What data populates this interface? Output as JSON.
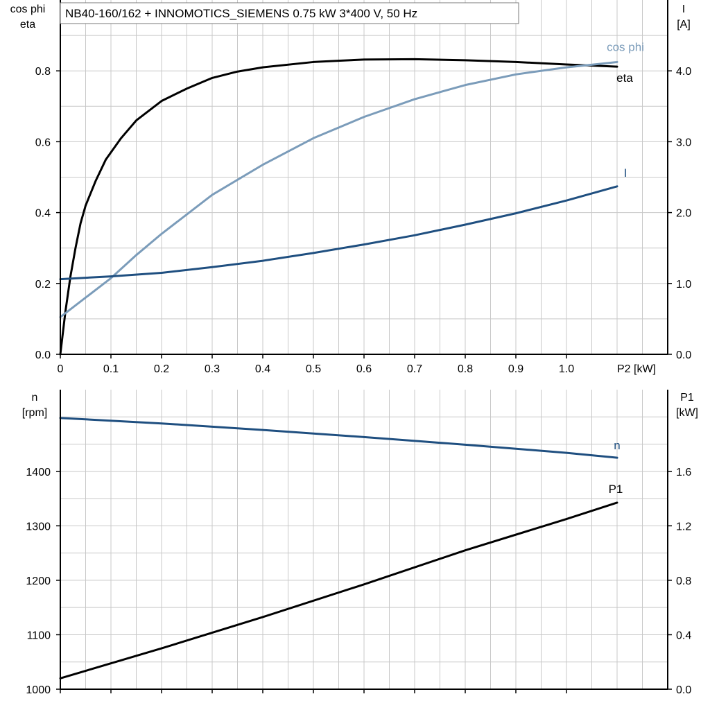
{
  "colors": {
    "eta": "#000000",
    "cos_phi": "#7b9cba",
    "current": "#1f4f80",
    "speed": "#1f4f80",
    "p1": "#000000",
    "grid": "#c8c8c8",
    "frame": "#000000"
  },
  "chart_data": [
    {
      "type": "line",
      "title": "NB40-160/162 + INNOMOTICS_SIEMENS   0.75 kW   3*400 V, 50 Hz",
      "xlabel": "P2 [kW]",
      "ylabel_left": [
        "cos phi",
        "eta"
      ],
      "ylabel_right": [
        "I",
        "[A]"
      ],
      "xlim": [
        0,
        1.2
      ],
      "ylim_left": [
        0,
        1.0
      ],
      "ylim_right": [
        0,
        5.0
      ],
      "x_ticks": [
        0,
        0.1,
        0.2,
        0.3,
        0.4,
        0.5,
        0.6,
        0.7,
        0.8,
        0.9,
        1.0
      ],
      "x_tick_labels": [
        "0",
        "0.1",
        "0.2",
        "0.3",
        "0.4",
        "0.5",
        "0.6",
        "0.7",
        "0.8",
        "0.9",
        "1.0"
      ],
      "y_left_ticks": [
        0,
        0.2,
        0.4,
        0.6,
        0.8
      ],
      "y_left_tick_labels": [
        "0.0",
        "0.2",
        "0.4",
        "0.6",
        "0.8"
      ],
      "y_right_ticks": [
        0,
        1,
        2,
        3,
        4
      ],
      "y_right_tick_labels": [
        "0.0",
        "1.0",
        "2.0",
        "3.0",
        "4.0"
      ],
      "grid": true,
      "series": [
        {
          "name": "eta",
          "axis": "left",
          "color": "#000000",
          "x": [
            0,
            0.01,
            0.02,
            0.03,
            0.04,
            0.05,
            0.07,
            0.09,
            0.12,
            0.15,
            0.2,
            0.25,
            0.3,
            0.35,
            0.4,
            0.5,
            0.6,
            0.7,
            0.8,
            0.9,
            1.0,
            1.1
          ],
          "y": [
            0,
            0.12,
            0.22,
            0.3,
            0.37,
            0.42,
            0.49,
            0.55,
            0.61,
            0.66,
            0.715,
            0.75,
            0.78,
            0.798,
            0.81,
            0.825,
            0.832,
            0.833,
            0.83,
            0.825,
            0.818,
            0.812
          ]
        },
        {
          "name": "cos phi",
          "axis": "left",
          "color": "#7b9cba",
          "x": [
            0,
            0.05,
            0.1,
            0.15,
            0.2,
            0.3,
            0.4,
            0.5,
            0.6,
            0.7,
            0.8,
            0.9,
            1.0,
            1.1
          ],
          "y": [
            0.105,
            0.16,
            0.215,
            0.28,
            0.34,
            0.45,
            0.535,
            0.61,
            0.67,
            0.72,
            0.76,
            0.79,
            0.81,
            0.825
          ]
        },
        {
          "name": "I",
          "axis": "right",
          "color": "#1f4f80",
          "x": [
            0,
            0.1,
            0.2,
            0.3,
            0.4,
            0.5,
            0.6,
            0.7,
            0.8,
            0.9,
            1.0,
            1.1
          ],
          "y": [
            1.06,
            1.1,
            1.15,
            1.23,
            1.32,
            1.43,
            1.55,
            1.68,
            1.83,
            1.99,
            2.17,
            2.37
          ]
        }
      ]
    },
    {
      "type": "line",
      "ylabel_left": [
        "n",
        "[rpm]"
      ],
      "ylabel_right": [
        "P1",
        "[kW]"
      ],
      "xlim": [
        0,
        1.2
      ],
      "ylim_left": [
        1000,
        1550
      ],
      "ylim_right": [
        0.0,
        2.2
      ],
      "x_ticks": [
        0,
        0.1,
        0.2,
        0.3,
        0.4,
        0.5,
        0.6,
        0.7,
        0.8,
        0.9,
        1.0
      ],
      "y_left_ticks": [
        1000,
        1100,
        1200,
        1300,
        1400
      ],
      "y_left_tick_labels": [
        "1000",
        "1100",
        "1200",
        "1300",
        "1400"
      ],
      "y_right_ticks": [
        0.0,
        0.4,
        0.8,
        1.2,
        1.6
      ],
      "y_right_tick_labels": [
        "0.0",
        "0.4",
        "0.8",
        "1.2",
        "1.6"
      ],
      "grid": true,
      "series": [
        {
          "name": "n",
          "axis": "left",
          "color": "#1f4f80",
          "x": [
            0,
            0.2,
            0.4,
            0.6,
            0.8,
            1.0,
            1.1
          ],
          "y": [
            1498,
            1488,
            1476,
            1463,
            1449,
            1434,
            1425
          ]
        },
        {
          "name": "P1",
          "axis": "right",
          "color": "#000000",
          "x": [
            0,
            0.2,
            0.4,
            0.6,
            0.8,
            1.0,
            1.1
          ],
          "y": [
            0.08,
            0.3,
            0.53,
            0.77,
            1.02,
            1.25,
            1.37
          ]
        }
      ]
    }
  ]
}
